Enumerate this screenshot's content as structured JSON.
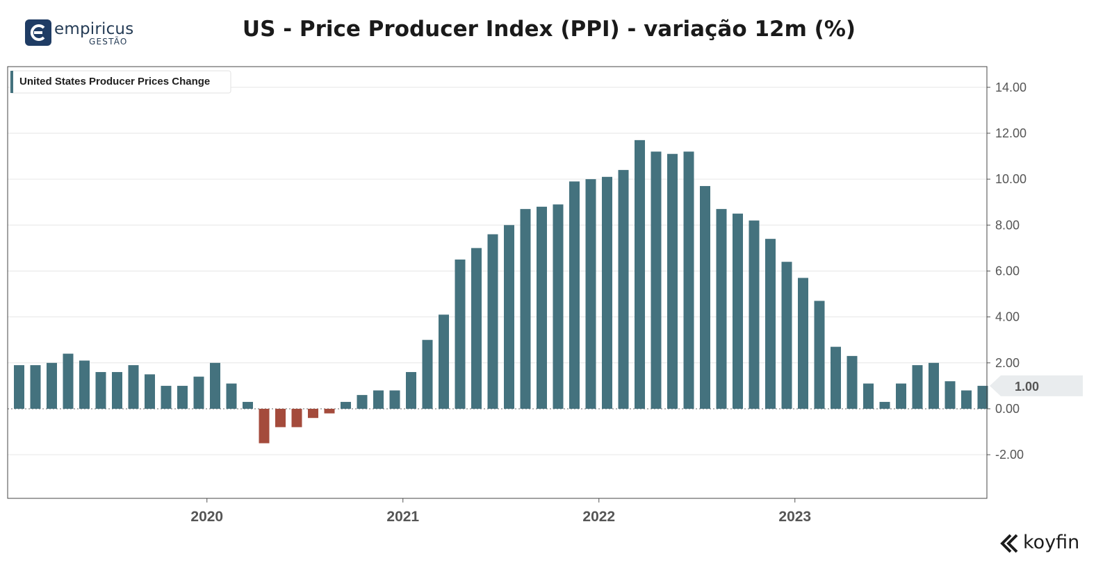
{
  "header": {
    "logo_name": "empiricus",
    "logo_sub": "GESTÃO",
    "title": "US - Price Producer Index (PPI) - variação 12m (%)"
  },
  "footer": {
    "brand": "koyfin"
  },
  "colors": {
    "positive": "#44727e",
    "negative": "#a44b3c",
    "grid": "#e6e6e6",
    "axis": "#555555",
    "last_badge": "#e9ecee"
  },
  "chart_data": {
    "type": "bar",
    "legend": "United States Producer Prices Change",
    "legend_position": "top-left",
    "grid": true,
    "y_axis_side": "right",
    "ylim": [
      -3.9,
      14.9
    ],
    "yticks": [
      -2,
      0,
      2,
      4,
      6,
      8,
      10,
      12,
      14
    ],
    "ytick_labels": [
      "-2.00",
      "0.00",
      "2.00",
      "4.00",
      "6.00",
      "8.00",
      "10.00",
      "12.00",
      "14.00"
    ],
    "year_labels": [
      {
        "label": "2020",
        "month_index": 12
      },
      {
        "label": "2021",
        "month_index": 24
      },
      {
        "label": "2022",
        "month_index": 36
      },
      {
        "label": "2023",
        "month_index": 48
      }
    ],
    "last_value_label": "1.00",
    "values": [
      1.9,
      1.9,
      2.0,
      2.4,
      2.1,
      1.6,
      1.6,
      1.9,
      1.5,
      1.0,
      1.0,
      1.4,
      2.0,
      1.1,
      0.3,
      -1.5,
      -0.8,
      -0.8,
      -0.4,
      -0.2,
      0.3,
      0.6,
      0.8,
      0.8,
      1.6,
      3.0,
      4.1,
      6.5,
      7.0,
      7.6,
      8.0,
      8.7,
      8.8,
      8.9,
      9.9,
      10.0,
      10.1,
      10.4,
      11.7,
      11.2,
      11.1,
      11.2,
      9.7,
      8.7,
      8.5,
      8.2,
      7.4,
      6.4,
      5.7,
      4.7,
      2.7,
      2.3,
      1.1,
      0.3,
      1.1,
      1.9,
      2.0,
      1.2,
      0.8,
      1.0
    ]
  }
}
